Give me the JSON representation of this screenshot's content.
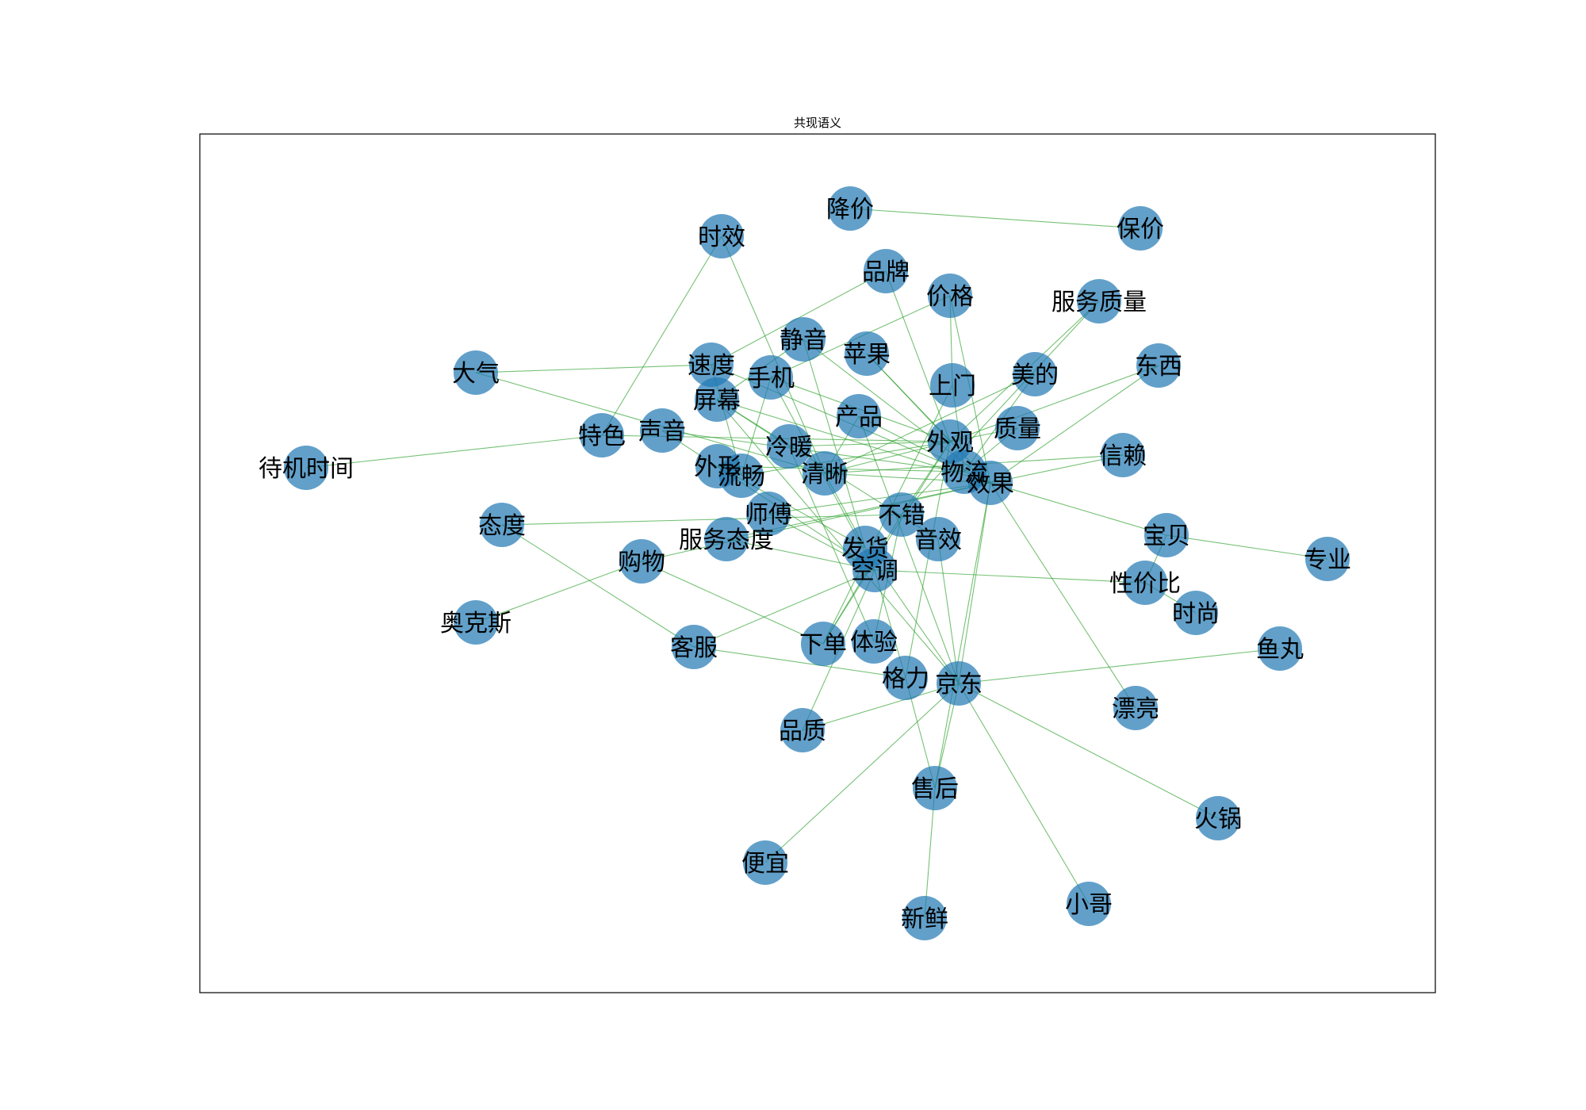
{
  "chart_data": {
    "type": "network",
    "title": "共现语义",
    "nodes": [
      "降价",
      "保价",
      "时效",
      "品牌",
      "价格",
      "服务质量",
      "静音",
      "苹果",
      "美的",
      "东西",
      "大气",
      "速度",
      "手机",
      "上门",
      "屏幕",
      "产品",
      "质量",
      "信赖",
      "特色",
      "声音",
      "冷暖",
      "外观",
      "待机时间",
      "外形",
      "流畅",
      "清晰",
      "物流",
      "效果",
      "态度",
      "师傅",
      "不错",
      "宝贝",
      "专业",
      "服务态度",
      "发货",
      "音效",
      "购物",
      "空调",
      "性价比",
      "时尚",
      "奥克斯",
      "客服",
      "下单",
      "体验",
      "鱼丸",
      "格力",
      "京东",
      "漂亮",
      "品质",
      "售后",
      "火锅",
      "便宜",
      "新鲜",
      "小哥"
    ],
    "edges": [
      [
        "降价",
        "保价"
      ],
      [
        "时效",
        "特色"
      ],
      [
        "时效",
        "清晰"
      ],
      [
        "品牌",
        "速度"
      ],
      [
        "品牌",
        "外观"
      ],
      [
        "价格",
        "手机"
      ],
      [
        "价格",
        "上门"
      ],
      [
        "价格",
        "效果"
      ],
      [
        "服务质量",
        "不错"
      ],
      [
        "服务质量",
        "外观"
      ],
      [
        "静音",
        "效果"
      ],
      [
        "静音",
        "屏幕"
      ],
      [
        "静音",
        "发货"
      ],
      [
        "苹果",
        "效果"
      ],
      [
        "苹果",
        "外观"
      ],
      [
        "美的",
        "物流"
      ],
      [
        "美的",
        "清晰"
      ],
      [
        "东西",
        "效果"
      ],
      [
        "东西",
        "外观"
      ],
      [
        "大气",
        "速度"
      ],
      [
        "大气",
        "清晰"
      ],
      [
        "速度",
        "物流"
      ],
      [
        "速度",
        "流畅"
      ],
      [
        "手机",
        "外观"
      ],
      [
        "手机",
        "空调"
      ],
      [
        "上门",
        "物流"
      ],
      [
        "上门",
        "下单"
      ],
      [
        "屏幕",
        "效果"
      ],
      [
        "屏幕",
        "京东"
      ],
      [
        "产品",
        "效果"
      ],
      [
        "产品",
        "京东"
      ],
      [
        "质量",
        "外观"
      ],
      [
        "质量",
        "物流"
      ],
      [
        "信赖",
        "清晰"
      ],
      [
        "信赖",
        "效果"
      ],
      [
        "特色",
        "待机时间"
      ],
      [
        "特色",
        "外观"
      ],
      [
        "声音",
        "物流"
      ],
      [
        "声音",
        "空调"
      ],
      [
        "冷暖",
        "外观"
      ],
      [
        "冷暖",
        "体验"
      ],
      [
        "外形",
        "物流"
      ],
      [
        "外形",
        "发货"
      ],
      [
        "流畅",
        "外观"
      ],
      [
        "清晰",
        "效果"
      ],
      [
        "清晰",
        "外观"
      ],
      [
        "物流",
        "效果"
      ],
      [
        "效果",
        "京东"
      ],
      [
        "效果",
        "漂亮"
      ],
      [
        "效果",
        "宝贝"
      ],
      [
        "态度",
        "不错"
      ],
      [
        "态度",
        "客服"
      ],
      [
        "师傅",
        "效果"
      ],
      [
        "师傅",
        "空调"
      ],
      [
        "不错",
        "外观"
      ],
      [
        "不错",
        "下单"
      ],
      [
        "宝贝",
        "性价比"
      ],
      [
        "宝贝",
        "专业"
      ],
      [
        "服务态度",
        "空调"
      ],
      [
        "服务态度",
        "效果"
      ],
      [
        "发货",
        "清晰"
      ],
      [
        "发货",
        "京东"
      ],
      [
        "音效",
        "屏幕"
      ],
      [
        "音效",
        "京东"
      ],
      [
        "购物",
        "效果"
      ],
      [
        "购物",
        "奥克斯"
      ],
      [
        "购物",
        "下单"
      ],
      [
        "空调",
        "性价比"
      ],
      [
        "空调",
        "格力"
      ],
      [
        "空调",
        "品质"
      ],
      [
        "性价比",
        "时尚"
      ],
      [
        "客服",
        "格力"
      ],
      [
        "客服",
        "空调"
      ],
      [
        "下单",
        "外观"
      ],
      [
        "体验",
        "不错"
      ],
      [
        "鱼丸",
        "京东"
      ],
      [
        "格力",
        "外观"
      ],
      [
        "格力",
        "售后"
      ],
      [
        "京东",
        "售后"
      ],
      [
        "京东",
        "小哥"
      ],
      [
        "京东",
        "火锅"
      ],
      [
        "京东",
        "便宜"
      ],
      [
        "京东",
        "品质"
      ],
      [
        "售后",
        "新鲜"
      ],
      [
        "售后",
        "效果"
      ],
      [
        "手机",
        "流畅"
      ],
      [
        "屏幕",
        "冷暖"
      ],
      [
        "产品",
        "清晰"
      ]
    ]
  }
}
